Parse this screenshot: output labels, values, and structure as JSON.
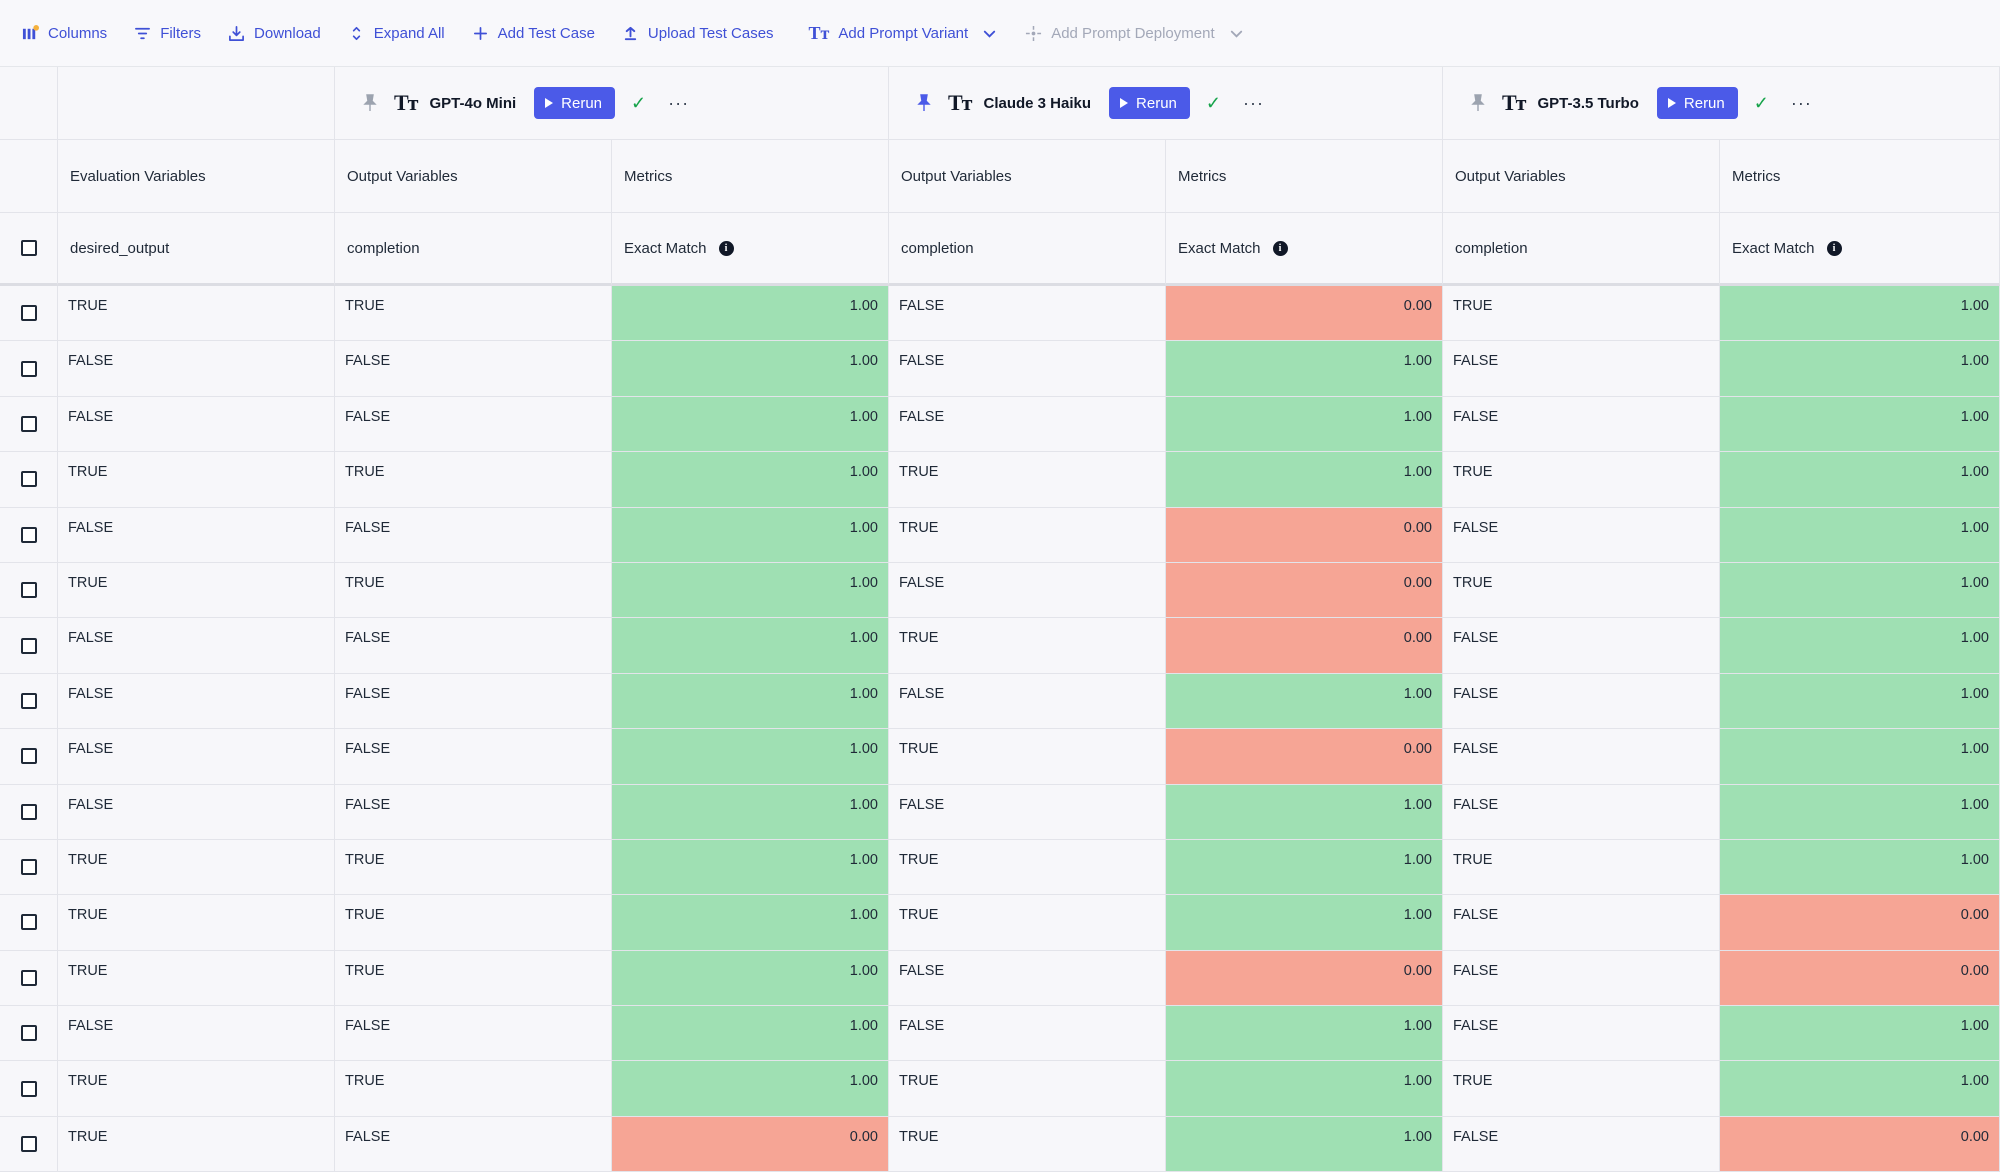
{
  "toolbar": {
    "columns": "Columns",
    "filters": "Filters",
    "download": "Download",
    "expand_all": "Expand All",
    "add_test_case": "Add Test Case",
    "upload_test_cases": "Upload Test Cases",
    "add_prompt_variant": "Add Prompt Variant",
    "add_prompt_deployment": "Add Prompt Deployment"
  },
  "models": [
    {
      "name": "GPT-4o Mini",
      "rerun": "Rerun",
      "pinned": false
    },
    {
      "name": "Claude 3 Haiku",
      "rerun": "Rerun",
      "pinned": true
    },
    {
      "name": "GPT-3.5 Turbo",
      "rerun": "Rerun",
      "pinned": false
    }
  ],
  "headers": {
    "evaluation_variables": "Evaluation Variables",
    "output_variables": "Output Variables",
    "metrics": "Metrics",
    "desired_output": "desired_output",
    "completion": "completion",
    "exact_match": "Exact Match"
  },
  "rows": [
    {
      "desired": "TRUE",
      "o1": "TRUE",
      "m1": "1.00",
      "o2": "FALSE",
      "m2": "0.00",
      "o3": "TRUE",
      "m3": "1.00"
    },
    {
      "desired": "FALSE",
      "o1": "FALSE",
      "m1": "1.00",
      "o2": "FALSE",
      "m2": "1.00",
      "o3": "FALSE",
      "m3": "1.00"
    },
    {
      "desired": "FALSE",
      "o1": "FALSE",
      "m1": "1.00",
      "o2": "FALSE",
      "m2": "1.00",
      "o3": "FALSE",
      "m3": "1.00"
    },
    {
      "desired": "TRUE",
      "o1": "TRUE",
      "m1": "1.00",
      "o2": "TRUE",
      "m2": "1.00",
      "o3": "TRUE",
      "m3": "1.00"
    },
    {
      "desired": "FALSE",
      "o1": "FALSE",
      "m1": "1.00",
      "o2": "TRUE",
      "m2": "0.00",
      "o3": "FALSE",
      "m3": "1.00"
    },
    {
      "desired": "TRUE",
      "o1": "TRUE",
      "m1": "1.00",
      "o2": "FALSE",
      "m2": "0.00",
      "o3": "TRUE",
      "m3": "1.00"
    },
    {
      "desired": "FALSE",
      "o1": "FALSE",
      "m1": "1.00",
      "o2": "TRUE",
      "m2": "0.00",
      "o3": "FALSE",
      "m3": "1.00"
    },
    {
      "desired": "FALSE",
      "o1": "FALSE",
      "m1": "1.00",
      "o2": "FALSE",
      "m2": "1.00",
      "o3": "FALSE",
      "m3": "1.00"
    },
    {
      "desired": "FALSE",
      "o1": "FALSE",
      "m1": "1.00",
      "o2": "TRUE",
      "m2": "0.00",
      "o3": "FALSE",
      "m3": "1.00"
    },
    {
      "desired": "FALSE",
      "o1": "FALSE",
      "m1": "1.00",
      "o2": "FALSE",
      "m2": "1.00",
      "o3": "FALSE",
      "m3": "1.00"
    },
    {
      "desired": "TRUE",
      "o1": "TRUE",
      "m1": "1.00",
      "o2": "TRUE",
      "m2": "1.00",
      "o3": "TRUE",
      "m3": "1.00"
    },
    {
      "desired": "TRUE",
      "o1": "TRUE",
      "m1": "1.00",
      "o2": "TRUE",
      "m2": "1.00",
      "o3": "FALSE",
      "m3": "0.00"
    },
    {
      "desired": "TRUE",
      "o1": "TRUE",
      "m1": "1.00",
      "o2": "FALSE",
      "m2": "0.00",
      "o3": "FALSE",
      "m3": "0.00"
    },
    {
      "desired": "FALSE",
      "o1": "FALSE",
      "m1": "1.00",
      "o2": "FALSE",
      "m2": "1.00",
      "o3": "FALSE",
      "m3": "1.00"
    },
    {
      "desired": "TRUE",
      "o1": "TRUE",
      "m1": "1.00",
      "o2": "TRUE",
      "m2": "1.00",
      "o3": "TRUE",
      "m3": "1.00"
    },
    {
      "desired": "TRUE",
      "o1": "FALSE",
      "m1": "0.00",
      "o2": "TRUE",
      "m2": "1.00",
      "o3": "FALSE",
      "m3": "0.00"
    }
  ],
  "colors": {
    "pass": "#9fe0b3",
    "fail": "#f6a595",
    "accent": "#4b5ae8",
    "link": "#3f50d6"
  }
}
